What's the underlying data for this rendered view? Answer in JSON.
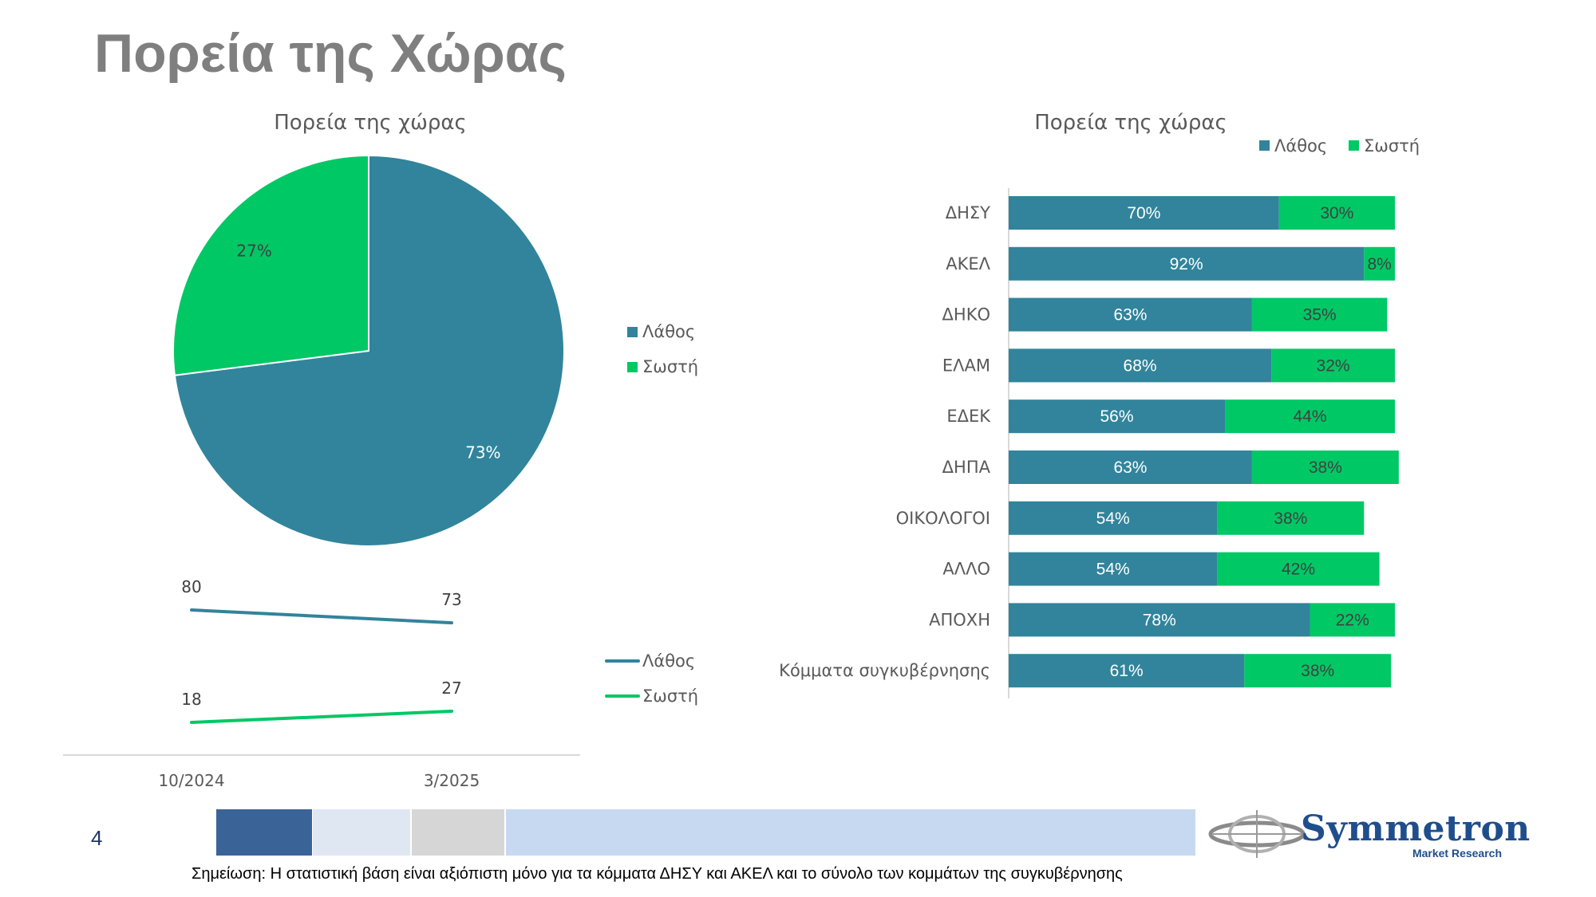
{
  "page": {
    "title": "Πορεία της Χώρας",
    "page_number": "4",
    "note": "Σημείωση: Η στατιστική βάση είναι αξιόπιστη μόνο για τα κόμματα ΔΗΣΥ και ΑΚΕΛ και το σύνολο των κομμάτων της συγκυβέρνησης",
    "logo_name": "Symmetron",
    "logo_sub": "Market Research",
    "colors": {
      "wrong": "#31849b",
      "right": "#00c865",
      "footer_dark": "#3a6498",
      "footer_pale": "#dfe7f3",
      "footer_gray": "#d6d6d6",
      "footer_light": "#c6d9f1"
    }
  },
  "chart_data": [
    {
      "type": "pie",
      "title": "Πορεία της χώρας",
      "labels": [
        "Λάθος",
        "Σωστή"
      ],
      "values": [
        73,
        27
      ],
      "data_labels": [
        "73%",
        "27%"
      ],
      "legend": "right"
    },
    {
      "type": "line",
      "title": "",
      "categories": [
        "10/2024",
        "3/2025"
      ],
      "series": [
        {
          "name": "Λάθος",
          "values": [
            80,
            73
          ],
          "labels": [
            "80",
            "73"
          ]
        },
        {
          "name": "Σωστή",
          "values": [
            18,
            27
          ],
          "labels": [
            "18",
            "27"
          ]
        }
      ],
      "legend": "right"
    },
    {
      "type": "bar",
      "orientation": "horizontal",
      "stacked": true,
      "title": "Πορεία της χώρας",
      "categories": [
        "ΔΗΣΥ",
        "ΑΚΕΛ",
        "ΔΗΚΟ",
        "ΕΛΑΜ",
        "ΕΔΕΚ",
        "ΔΗΠΑ",
        "ΟΙΚΟΛΟΓΟΙ",
        "ΑΛΛΟ",
        "ΑΠΟΧΗ",
        "Κόμματα συγκυβέρνησης"
      ],
      "series": [
        {
          "name": "Λάθος",
          "values": [
            70,
            92,
            63,
            68,
            56,
            63,
            54,
            54,
            78,
            61
          ],
          "labels": [
            "70%",
            "92%",
            "63%",
            "68%",
            "56%",
            "63%",
            "54%",
            "54%",
            "78%",
            "61%"
          ]
        },
        {
          "name": "Σωστή",
          "values": [
            30,
            8,
            35,
            32,
            44,
            38,
            38,
            42,
            22,
            38
          ],
          "labels": [
            "30%",
            "8%",
            "35%",
            "32%",
            "44%",
            "38%",
            "38%",
            "42%",
            "22%",
            "38%"
          ]
        }
      ],
      "legend": "top"
    }
  ]
}
